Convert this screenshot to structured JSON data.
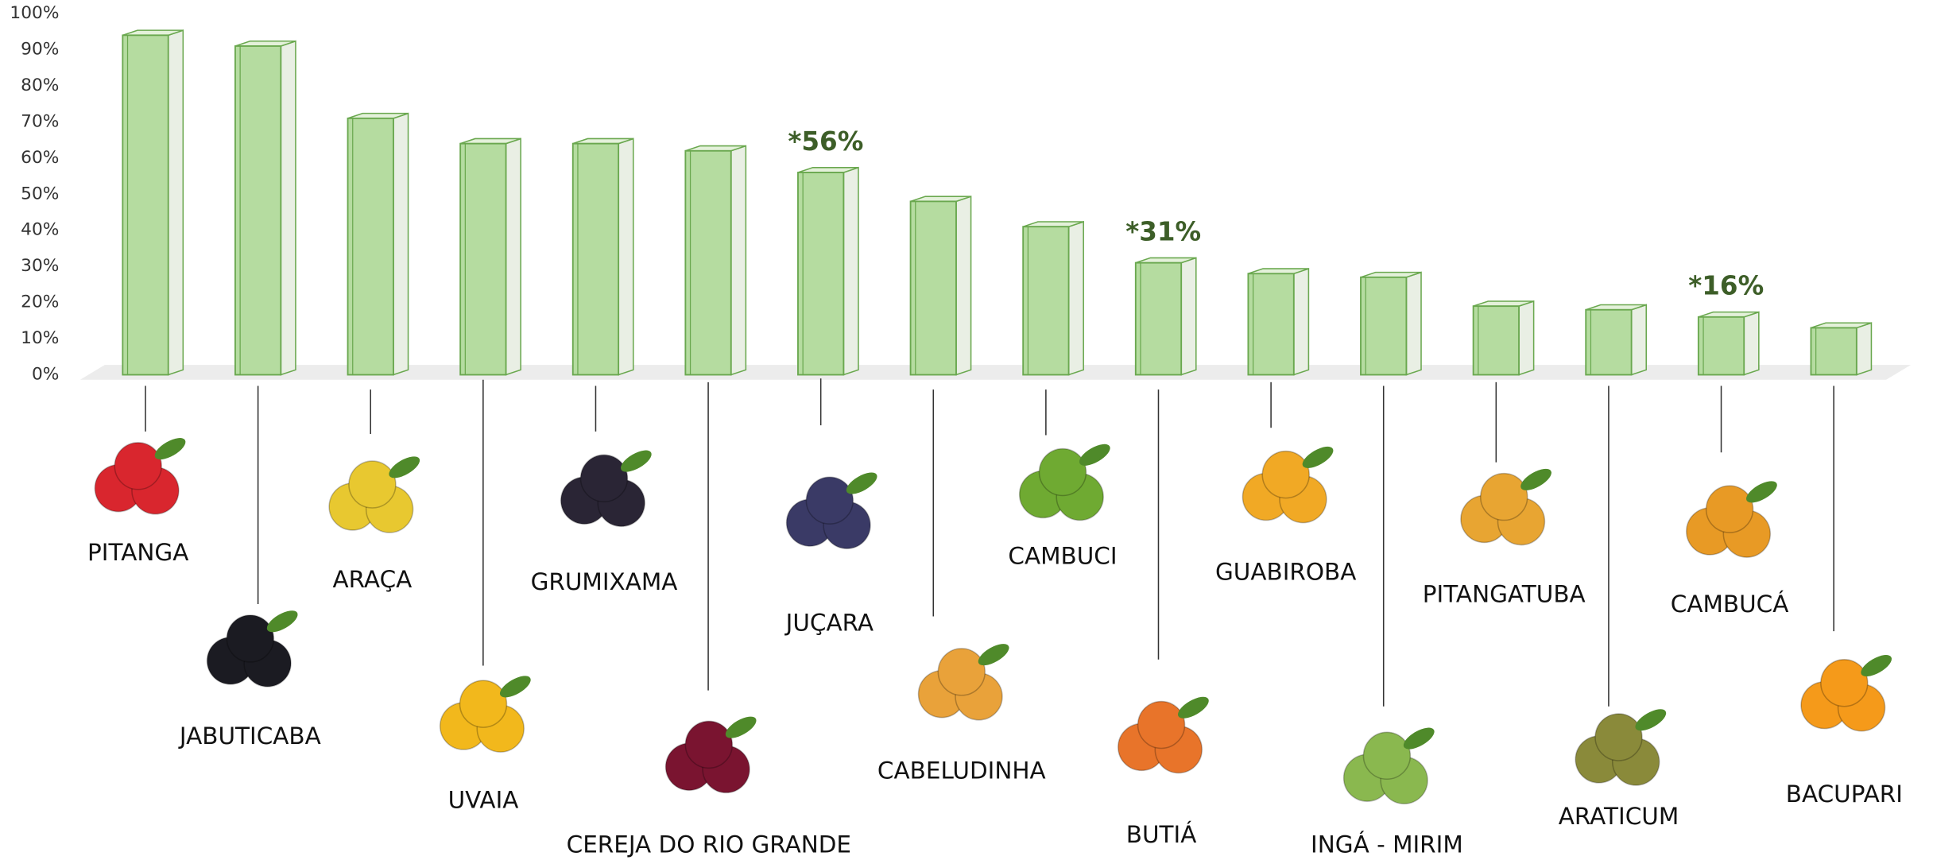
{
  "chart_data": {
    "type": "bar",
    "categories": [
      "PITANGA",
      "JABUTICABA",
      "ARAÇA",
      "UVAIA",
      "GRUMIXAMA",
      "CEREJA DO RIO GRANDE",
      "JUÇARA",
      "CABELUDINHA",
      "CAMBUCI",
      "BUTIÁ",
      "GUABIROBA",
      "INGÁ -  MIRIM",
      "PITANGATUBA",
      "ARATICUM",
      "CAMBUCÁ",
      "BACUPARI"
    ],
    "values": [
      94,
      91,
      71,
      64,
      64,
      62,
      56,
      48,
      41,
      31,
      28,
      27,
      19,
      18,
      16,
      13
    ],
    "value_labels": [
      null,
      null,
      null,
      null,
      null,
      null,
      "*56%",
      null,
      null,
      "*31%",
      null,
      null,
      null,
      null,
      "*16%",
      null
    ],
    "color": "#b5dca0",
    "ylim": [
      0,
      100
    ],
    "yticks": [
      {
        "value": 0,
        "label": "0%"
      },
      {
        "value": 10,
        "label": "10%"
      },
      {
        "value": 20,
        "label": "20%"
      },
      {
        "value": 30,
        "label": "30%"
      },
      {
        "value": 40,
        "label": "40%"
      },
      {
        "value": 50,
        "label": "50%"
      },
      {
        "value": 60,
        "label": "60%"
      },
      {
        "value": 70,
        "label": "70%"
      },
      {
        "value": 80,
        "label": "80%"
      },
      {
        "value": 90,
        "label": "90%"
      },
      {
        "value": 100,
        "label": "100%"
      }
    ],
    "grid": false
  }
}
